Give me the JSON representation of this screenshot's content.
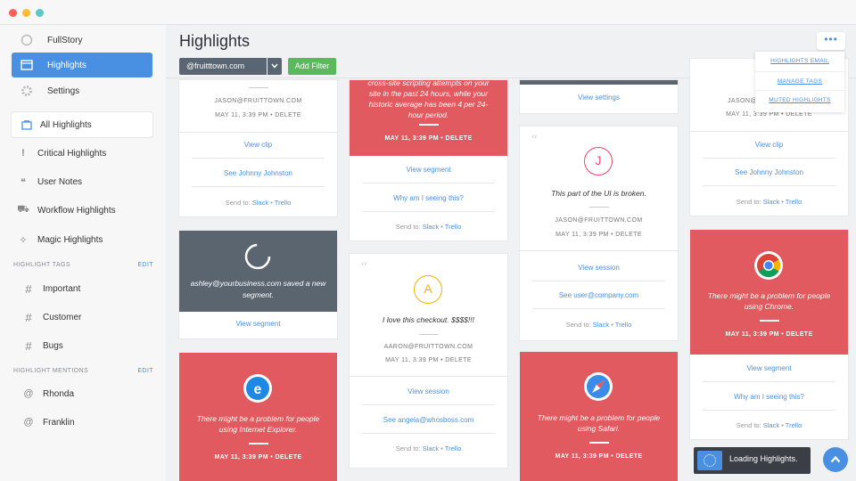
{
  "window": {
    "dots": [
      "#ff5f57",
      "#febc2e",
      "#5bc8c5"
    ]
  },
  "sidebar": {
    "top": [
      {
        "label": "FullStory",
        "icon": "fullstory-logo-icon"
      },
      {
        "label": "Highlights",
        "icon": "inbox-icon"
      },
      {
        "label": "Settings",
        "icon": "gear-icon"
      }
    ],
    "items": [
      {
        "label": "All Highlights",
        "icon": "inbox-icon",
        "glyph": "▭"
      },
      {
        "label": "Critical Highlights",
        "icon": "exclamation-icon",
        "glyph": "!"
      },
      {
        "label": "User Notes",
        "icon": "quote-icon",
        "glyph": "❝"
      },
      {
        "label": "Workflow Highlights",
        "icon": "workflow-icon",
        "glyph": "⛟"
      },
      {
        "label": "Magic Highlights",
        "icon": "magic-wand-icon",
        "glyph": "✧"
      }
    ],
    "tags_heading": "HIGHLIGHT TAGS",
    "tags_edit": "EDIT",
    "tags": [
      "Important",
      "Customer",
      "Bugs"
    ],
    "mentions_heading": "HIGHLIGHT MENTIONS",
    "mentions_edit": "EDIT",
    "mentions": [
      "Rhonda",
      "Franklin"
    ]
  },
  "header": {
    "title": "Highlights",
    "filter_value": "@fruitttown.com",
    "add_filter": "Add Filter",
    "more": "•••",
    "dropdown": [
      "HIGHLIGHTS EMAIL",
      "MANAGE TAGS",
      "MUTED HIGHLIGHTS"
    ]
  },
  "cards": {
    "c1a": {
      "meta1": "JASON@FRUITTOWN.COM",
      "meta2": "MAY 11, 3:39 PM • DELETE",
      "link1": "View clip",
      "link2": "See Johnny Johnston",
      "send": "Send to:",
      "slack": "Slack",
      "trello": "Trello"
    },
    "c1b": {
      "text": "ashley@yourbusiness.com saved a new segment.",
      "link1": "View segment"
    },
    "c1c": {
      "text": "There might be a problem for people using Internet Explorer.",
      "meta": "MAY 11, 3:39 PM • DELETE"
    },
    "c2a": {
      "text": "cross-site scripting attempts on your site in the past 24 hours, while your historic average has been 4 per 24-hour period.",
      "meta": "MAY 11, 3:39 PM • DELETE",
      "link1": "View segment",
      "link2": "Why am I seeing this?",
      "send": "Send to:",
      "slack": "Slack",
      "trello": "Trello"
    },
    "c2b": {
      "initial": "A",
      "quote": "I love this checkout. $$$$!!!",
      "meta1": "AARON@FRUITTOWN.COM",
      "meta2": "MAY 11, 3:39 PM • DELETE",
      "link1": "View session",
      "link2": "See angela@whosboss.com",
      "send": "Send to:",
      "slack": "Slack",
      "trello": "Trello"
    },
    "c3a": {
      "link1": "View settings"
    },
    "c3b": {
      "initial": "J",
      "quote": "This part of the UI is broken.",
      "meta1": "JASON@FRUITTOWN.COM",
      "meta2": "MAY 11, 3:39 PM • DELETE",
      "link1": "View session",
      "link2": "See user@company.com",
      "send": "Send to:",
      "slack": "Slack",
      "trello": "Trello"
    },
    "c3c": {
      "text": "There might be a problem for people using Safari.",
      "meta": "MAY 11, 3:39 PM • DELETE"
    },
    "c4a": {
      "meta1": "JASON@",
      "meta2": "MAY 11, 3:39 PM • DELETE",
      "link1": "View clip",
      "link2": "See Johnny Johnston",
      "send": "Send to:",
      "slack": "Slack",
      "trello": "Trello"
    },
    "c4b": {
      "text": "There might be a problem for people using Chrome.",
      "meta": "MAY 11, 3:39 PM • DELETE",
      "link1": "View segment",
      "link2": "Why am I seeing this?",
      "send": "Send to:",
      "slack": "Slack",
      "trello": "Trello"
    }
  },
  "toast": {
    "text": "Loading Highlights."
  },
  "colors": {
    "accent": "#4a90e2",
    "red": "#e15a5f",
    "slate": "#5a6570",
    "green": "#5cb85c",
    "jason": "#e8466b",
    "aaron": "#f0b400"
  }
}
